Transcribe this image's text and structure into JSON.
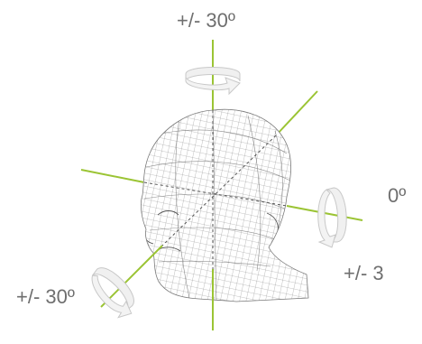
{
  "labels": {
    "top": "+/- 30º",
    "right_angle": "0º",
    "right_tilt": "+/- 3",
    "bottom_left": "+/- 30º"
  },
  "colors": {
    "axis": "#9bc434",
    "mesh": "#8a8a8a",
    "arrow_fill": "#f0f0f0",
    "arrow_stroke": "#c8c8c8",
    "label_text": "#6f6f6f"
  },
  "icons": {
    "head": "wireframe-head-icon",
    "rotate_top": "rotate-arrow-icon",
    "rotate_right": "rotate-arrow-icon",
    "rotate_left": "rotate-arrow-icon"
  }
}
